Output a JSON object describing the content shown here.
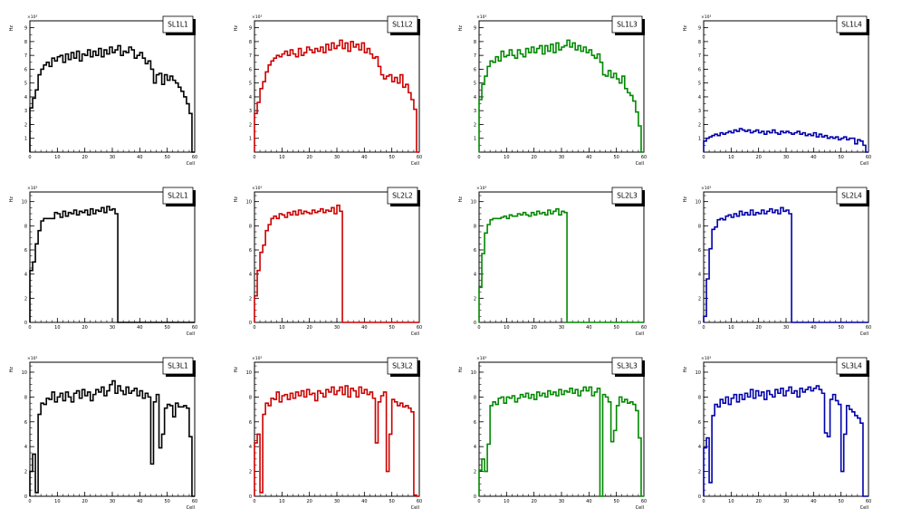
{
  "colors": {
    "SL1L1": "#000000",
    "SL1L2": "#cc0000",
    "SL1L3": "#008800",
    "SL1L4": "#0000aa"
  },
  "chart_data": [
    {
      "type": "histogram",
      "title": "SL1L1",
      "xlabel": "Cell",
      "ylabel": "Hz",
      "yscale_label": "×10³",
      "xlim": [
        0,
        60
      ],
      "ylim": [
        0,
        9.5
      ],
      "xticks": [
        "0",
        "10",
        "20",
        "30",
        "40",
        "50",
        "60"
      ],
      "yticks": [
        "1",
        "2",
        "3",
        "4",
        "5",
        "6",
        "7",
        "8",
        "9"
      ],
      "color": "#000000",
      "values": [
        3.2,
        3.9,
        4.5,
        5.6,
        6.0,
        6.3,
        6.5,
        6.2,
        6.8,
        6.6,
        6.9,
        7.0,
        6.5,
        7.1,
        6.7,
        7.2,
        6.8,
        7.3,
        6.6,
        7.1,
        7.0,
        7.4,
        6.9,
        7.3,
        7.0,
        7.5,
        6.9,
        7.4,
        7.1,
        7.6,
        7.2,
        7.4,
        7.7,
        7.0,
        7.3,
        7.2,
        7.6,
        7.4,
        6.8,
        7.0,
        7.2,
        6.8,
        6.4,
        6.6,
        6.0,
        5.0,
        5.6,
        5.7,
        4.9,
        5.6,
        5.2,
        5.5,
        5.2,
        5.0,
        4.7,
        4.4,
        4.0,
        3.5,
        2.8,
        0
      ]
    },
    {
      "type": "histogram",
      "title": "SL1L2",
      "xlabel": "Cell",
      "ylabel": "Hz",
      "yscale_label": "×10³",
      "xlim": [
        0,
        60
      ],
      "ylim": [
        0,
        9.5
      ],
      "xticks": [
        "0",
        "10",
        "20",
        "30",
        "40",
        "50",
        "60"
      ],
      "yticks": [
        "1",
        "2",
        "3",
        "4",
        "5",
        "6",
        "7",
        "8",
        "9"
      ],
      "color": "#cc0000",
      "values": [
        2.8,
        3.6,
        4.6,
        5.1,
        5.8,
        6.3,
        6.6,
        6.8,
        7.0,
        6.9,
        7.1,
        7.3,
        7.0,
        7.4,
        7.1,
        6.9,
        7.5,
        7.0,
        7.2,
        7.6,
        7.4,
        7.2,
        7.5,
        7.3,
        7.6,
        7.2,
        7.8,
        7.4,
        7.9,
        7.5,
        7.7,
        8.1,
        7.5,
        7.9,
        7.3,
        8.0,
        7.6,
        7.8,
        7.4,
        7.9,
        7.2,
        7.5,
        7.1,
        6.8,
        6.9,
        6.2,
        5.6,
        5.3,
        5.5,
        5.6,
        5.1,
        5.4,
        5.0,
        5.6,
        4.7,
        4.9,
        4.3,
        3.8,
        3.1,
        0
      ]
    },
    {
      "type": "histogram",
      "title": "SL1L3",
      "xlabel": "Cell",
      "ylabel": "Hz",
      "yscale_label": "×10³",
      "xlim": [
        0,
        60
      ],
      "ylim": [
        0,
        9.5
      ],
      "xticks": [
        "0",
        "10",
        "20",
        "30",
        "40",
        "50",
        "60"
      ],
      "yticks": [
        "1",
        "2",
        "3",
        "4",
        "5",
        "6",
        "7",
        "8",
        "9"
      ],
      "color": "#008800",
      "values": [
        3.8,
        4.9,
        5.5,
        6.2,
        6.6,
        6.5,
        6.9,
        6.6,
        7.3,
        6.9,
        7.0,
        7.4,
        7.0,
        6.8,
        7.4,
        7.1,
        6.9,
        7.5,
        7.2,
        7.6,
        7.2,
        7.5,
        7.7,
        7.1,
        7.7,
        7.3,
        7.8,
        7.2,
        7.9,
        7.4,
        7.6,
        7.7,
        8.1,
        7.6,
        7.9,
        7.4,
        7.7,
        7.3,
        7.6,
        7.2,
        7.4,
        7.0,
        6.8,
        7.1,
        6.5,
        5.6,
        5.5,
        5.9,
        5.4,
        5.7,
        5.3,
        5.0,
        5.5,
        4.6,
        4.3,
        4.1,
        3.7,
        2.9,
        1.9,
        0
      ]
    },
    {
      "type": "histogram",
      "title": "SL1L4",
      "xlabel": "Cell",
      "ylabel": "Hz",
      "yscale_label": "×10³",
      "xlim": [
        0,
        60
      ],
      "ylim": [
        0,
        9.5
      ],
      "xticks": [
        "0",
        "10",
        "20",
        "30",
        "40",
        "50",
        "60"
      ],
      "yticks": [
        "1",
        "2",
        "3",
        "4",
        "5",
        "6",
        "7",
        "8",
        "9"
      ],
      "color": "#0000aa",
      "values": [
        0.8,
        1.0,
        1.1,
        1.2,
        1.3,
        1.2,
        1.4,
        1.3,
        1.4,
        1.5,
        1.4,
        1.6,
        1.5,
        1.7,
        1.6,
        1.5,
        1.6,
        1.4,
        1.5,
        1.6,
        1.4,
        1.5,
        1.3,
        1.5,
        1.4,
        1.6,
        1.4,
        1.3,
        1.5,
        1.4,
        1.5,
        1.4,
        1.3,
        1.4,
        1.5,
        1.3,
        1.4,
        1.2,
        1.3,
        1.2,
        1.4,
        1.1,
        1.3,
        1.1,
        1.2,
        1.0,
        1.1,
        1.0,
        1.1,
        0.9,
        1.0,
        1.1,
        0.9,
        1.0,
        1.0,
        0.6,
        0.9,
        0.8,
        0.5,
        0
      ]
    },
    {
      "type": "histogram",
      "title": "SL2L1",
      "xlabel": "Cell",
      "ylabel": "Hz",
      "yscale_label": "×10³",
      "xlim": [
        0,
        60
      ],
      "ylim": [
        0,
        10.8
      ],
      "xticks": [
        "0",
        "10",
        "20",
        "30",
        "40",
        "50",
        "60"
      ],
      "yticks": [
        "0",
        "2",
        "4",
        "6",
        "8",
        "10"
      ],
      "color": "#000000",
      "values": [
        4.3,
        5.0,
        6.5,
        7.6,
        8.4,
        8.6,
        8.6,
        8.6,
        8.6,
        9.1,
        9.0,
        8.7,
        9.2,
        8.8,
        9.1,
        9.0,
        9.3,
        8.9,
        9.2,
        9.1,
        9.3,
        8.9,
        9.4,
        9.0,
        9.3,
        9.2,
        9.5,
        9.1,
        9.6,
        9.3,
        9.4,
        9.0,
        0,
        0,
        0,
        0,
        0,
        0,
        0,
        0,
        0,
        0,
        0,
        0,
        0,
        0,
        0,
        0,
        0,
        0,
        0,
        0,
        0,
        0,
        0,
        0,
        0,
        0,
        0,
        0
      ]
    },
    {
      "type": "histogram",
      "title": "SL2L2",
      "xlabel": "Cell",
      "ylabel": "Hz",
      "yscale_label": "×10³",
      "xlim": [
        0,
        60
      ],
      "ylim": [
        0,
        10.8
      ],
      "xticks": [
        "0",
        "10",
        "20",
        "30",
        "40",
        "50",
        "60"
      ],
      "yticks": [
        "0",
        "2",
        "4",
        "6",
        "8",
        "10"
      ],
      "color": "#cc0000",
      "values": [
        2.2,
        4.3,
        5.8,
        6.4,
        7.6,
        8.1,
        8.6,
        8.8,
        8.6,
        9.0,
        8.9,
        8.7,
        9.1,
        8.9,
        9.2,
        8.9,
        9.3,
        9.0,
        9.2,
        9.1,
        9.0,
        9.3,
        9.1,
        9.2,
        9.4,
        9.1,
        9.3,
        9.2,
        9.5,
        9.0,
        9.7,
        9.2,
        0,
        0,
        0,
        0,
        0,
        0,
        0,
        0,
        0,
        0,
        0,
        0,
        0,
        0,
        0,
        0,
        0,
        0,
        0,
        0,
        0,
        0,
        0,
        0,
        0,
        0,
        0,
        0
      ]
    },
    {
      "type": "histogram",
      "title": "SL2L3",
      "xlabel": "Cell",
      "ylabel": "Hz",
      "yscale_label": "×10³",
      "xlim": [
        0,
        60
      ],
      "ylim": [
        0,
        10.8
      ],
      "xticks": [
        "0",
        "10",
        "20",
        "30",
        "40",
        "50",
        "60"
      ],
      "yticks": [
        "0",
        "2",
        "4",
        "6",
        "8",
        "10"
      ],
      "color": "#008800",
      "values": [
        2.9,
        5.7,
        7.4,
        8.1,
        8.5,
        8.6,
        8.6,
        8.6,
        8.7,
        8.8,
        8.6,
        8.9,
        8.8,
        8.8,
        9.0,
        8.9,
        9.1,
        8.9,
        8.8,
        9.1,
        8.9,
        9.2,
        9.0,
        9.1,
        8.9,
        9.3,
        9.0,
        9.2,
        9.4,
        8.9,
        9.2,
        9.1,
        0,
        0,
        0,
        0,
        0,
        0,
        0,
        0,
        0,
        0,
        0,
        0,
        0,
        0,
        0,
        0,
        0,
        0,
        0,
        0,
        0,
        0,
        0,
        0,
        0,
        0,
        0,
        0
      ]
    },
    {
      "type": "histogram",
      "title": "SL2L4",
      "xlabel": "Cell",
      "ylabel": "Hz",
      "yscale_label": "×10³",
      "xlim": [
        0,
        60
      ],
      "ylim": [
        0,
        10.8
      ],
      "xticks": [
        "0",
        "10",
        "20",
        "30",
        "40",
        "50",
        "60"
      ],
      "yticks": [
        "0",
        "2",
        "4",
        "6",
        "8",
        "10"
      ],
      "color": "#0000aa",
      "values": [
        0.5,
        3.6,
        6.1,
        7.7,
        7.9,
        8.5,
        8.6,
        8.5,
        8.8,
        8.9,
        8.7,
        9.0,
        8.8,
        9.2,
        8.9,
        9.1,
        8.9,
        9.3,
        8.9,
        9.1,
        9.0,
        9.3,
        9.0,
        9.2,
        9.4,
        9.1,
        9.3,
        9.0,
        9.5,
        9.2,
        9.3,
        9.0,
        0,
        0,
        0,
        0,
        0,
        0,
        0,
        0,
        0,
        0,
        0,
        0,
        0,
        0,
        0,
        0,
        0,
        0,
        0,
        0,
        0,
        0,
        0,
        0,
        0,
        0,
        0,
        0
      ]
    },
    {
      "type": "histogram",
      "title": "SL3L1",
      "xlabel": "Cell",
      "ylabel": "Hz",
      "yscale_label": "×10³",
      "xlim": [
        0,
        60
      ],
      "ylim": [
        0,
        10.8
      ],
      "xticks": [
        "0",
        "10",
        "20",
        "30",
        "40",
        "50",
        "60"
      ],
      "yticks": [
        "0",
        "2",
        "4",
        "6",
        "8",
        "10"
      ],
      "color": "#000000",
      "values": [
        2.0,
        3.4,
        0.3,
        6.6,
        7.5,
        7.4,
        7.9,
        7.8,
        8.4,
        7.6,
        8.0,
        8.3,
        7.7,
        8.4,
        8.0,
        7.6,
        8.3,
        8.5,
        7.9,
        8.6,
        8.1,
        8.4,
        7.7,
        8.2,
        8.6,
        8.4,
        8.8,
        8.1,
        8.5,
        9.0,
        9.3,
        8.3,
        8.9,
        8.5,
        8.2,
        8.8,
        8.3,
        8.5,
        8.7,
        8.1,
        8.5,
        7.9,
        8.3,
        8.0,
        2.6,
        7.6,
        8.2,
        3.9,
        5.0,
        7.1,
        7.4,
        7.3,
        6.4,
        7.5,
        7.2,
        7.2,
        7.3,
        7.1,
        4.8,
        0
      ]
    },
    {
      "type": "histogram",
      "title": "SL3L2",
      "xlabel": "Cell",
      "ylabel": "Hz",
      "yscale_label": "×10³",
      "xlim": [
        0,
        60
      ],
      "ylim": [
        0,
        10.8
      ],
      "xticks": [
        "0",
        "10",
        "20",
        "30",
        "40",
        "50",
        "60"
      ],
      "yticks": [
        "0",
        "2",
        "4",
        "6",
        "8",
        "10"
      ],
      "color": "#cc0000",
      "values": [
        4.3,
        5.0,
        0.3,
        6.6,
        7.5,
        7.3,
        7.9,
        7.8,
        8.4,
        7.6,
        8.1,
        8.2,
        7.8,
        8.3,
        7.9,
        8.4,
        8.1,
        8.5,
        8.0,
        8.6,
        8.2,
        8.3,
        7.7,
        8.5,
        8.3,
        8.0,
        8.6,
        8.4,
        8.8,
        8.2,
        8.5,
        8.8,
        8.2,
        8.9,
        8.0,
        8.7,
        8.5,
        8.0,
        8.8,
        8.3,
        8.6,
        8.2,
        8.4,
        7.9,
        4.3,
        7.6,
        8.1,
        8.4,
        2.0,
        5.0,
        7.8,
        7.6,
        7.3,
        7.5,
        7.2,
        7.3,
        7.1,
        6.8,
        0.1,
        0
      ]
    },
    {
      "type": "histogram",
      "title": "SL3L3",
      "xlabel": "Cell",
      "ylabel": "Hz",
      "yscale_label": "×10³",
      "xlim": [
        0,
        60
      ],
      "ylim": [
        0,
        10.8
      ],
      "xticks": [
        "0",
        "10",
        "20",
        "30",
        "40",
        "50",
        "60"
      ],
      "yticks": [
        "0",
        "2",
        "4",
        "6",
        "8",
        "10"
      ],
      "color": "#008800",
      "values": [
        2.1,
        3.0,
        2.0,
        4.2,
        7.3,
        7.6,
        7.4,
        7.9,
        8.0,
        7.5,
        8.0,
        7.9,
        8.1,
        7.6,
        7.9,
        8.2,
        8.0,
        8.3,
        7.9,
        8.2,
        7.8,
        8.4,
        8.1,
        8.3,
        8.0,
        8.5,
        8.2,
        8.4,
        8.1,
        8.6,
        8.2,
        8.5,
        8.4,
        8.7,
        8.3,
        8.6,
        8.1,
        8.5,
        8.8,
        8.5,
        8.8,
        8.1,
        8.4,
        8.7,
        0,
        8.2,
        8.0,
        7.6,
        4.4,
        5.3,
        7.3,
        8.0,
        7.6,
        7.8,
        7.5,
        7.6,
        7.4,
        6.9,
        4.7,
        0
      ]
    },
    {
      "type": "histogram",
      "title": "SL3L4",
      "xlabel": "Cell",
      "ylabel": "Hz",
      "yscale_label": "×10³",
      "xlim": [
        0,
        60
      ],
      "ylim": [
        0,
        10.8
      ],
      "xticks": [
        "0",
        "10",
        "20",
        "30",
        "40",
        "50",
        "60"
      ],
      "yticks": [
        "0",
        "2",
        "4",
        "6",
        "8",
        "10"
      ],
      "color": "#0000aa",
      "values": [
        3.9,
        4.7,
        1.1,
        6.5,
        7.4,
        7.2,
        7.8,
        7.5,
        8.0,
        7.4,
        7.9,
        8.2,
        7.6,
        8.2,
        7.8,
        8.3,
        8.0,
        8.6,
        7.9,
        8.5,
        8.1,
        8.4,
        7.8,
        8.5,
        8.2,
        8.0,
        8.6,
        8.3,
        8.7,
        8.1,
        8.5,
        8.8,
        8.3,
        8.5,
        8.0,
        8.7,
        8.4,
        8.6,
        8.8,
        8.5,
        8.7,
        8.9,
        8.6,
        8.3,
        5.1,
        4.8,
        7.8,
        8.2,
        7.7,
        7.4,
        2.0,
        5.0,
        7.3,
        7.0,
        6.8,
        6.5,
        6.3,
        5.9,
        0,
        0
      ]
    }
  ]
}
